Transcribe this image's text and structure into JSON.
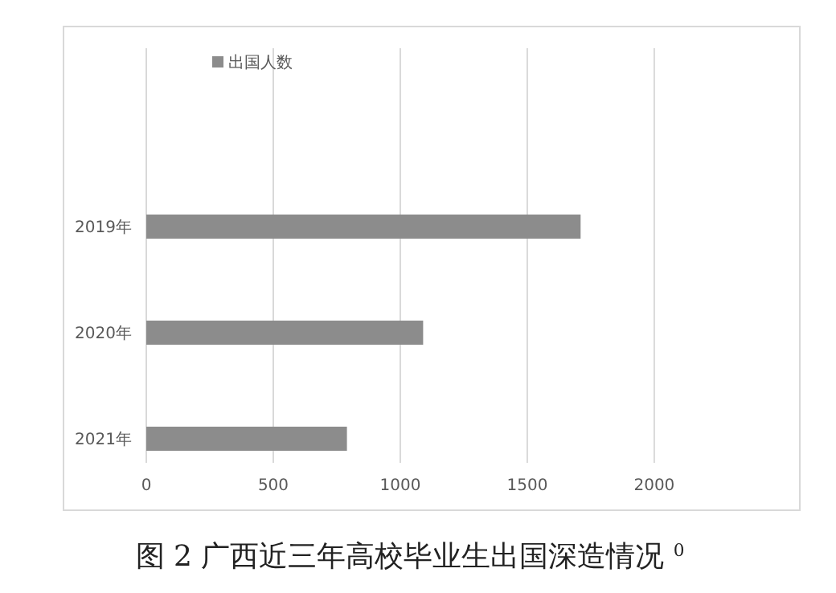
{
  "chart_data": {
    "type": "bar",
    "orientation": "horizontal",
    "title": "图 2 广西近三年高校毕业生出国深造情况 $^{0}$",
    "categories": [
      "2019年",
      "2020年",
      "2021年"
    ],
    "series": [
      {
        "name": "出国人数",
        "color": "#8c8c8c",
        "values": [
          1710,
          1090,
          790
        ]
      }
    ],
    "xlim": [
      0,
      2570
    ],
    "xticks": [
      0,
      500,
      1000,
      1500,
      2000
    ],
    "grid": "x",
    "legend": "top left"
  }
}
